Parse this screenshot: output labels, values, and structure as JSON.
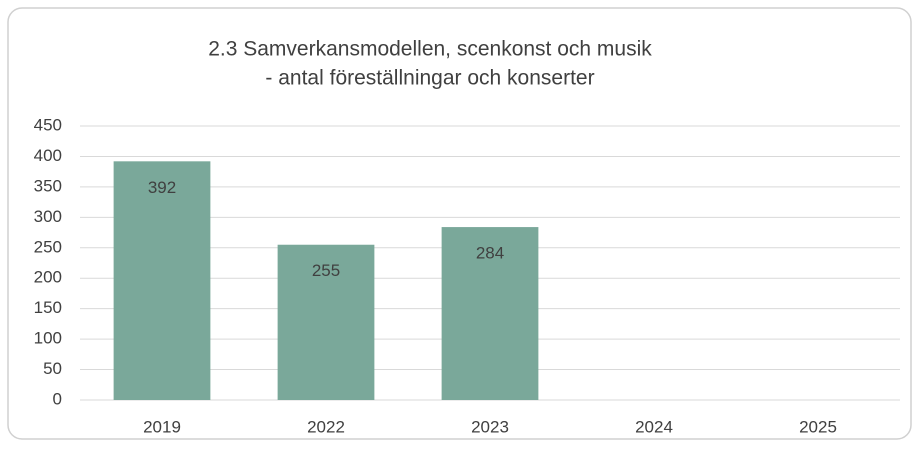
{
  "chart_data": {
    "type": "bar",
    "title": [
      "2.3 Samverkansmodellen, scenkonst och musik",
      "- antal föreställningar och konserter"
    ],
    "categories": [
      "2019",
      "2022",
      "2023",
      "2024",
      "2025"
    ],
    "values": [
      392,
      255,
      284,
      null,
      null
    ],
    "color": "#7aa89a",
    "ylim": [
      0,
      450
    ],
    "yticks": [
      0,
      50,
      100,
      150,
      200,
      250,
      300,
      350,
      400,
      450
    ],
    "grid": true
  }
}
